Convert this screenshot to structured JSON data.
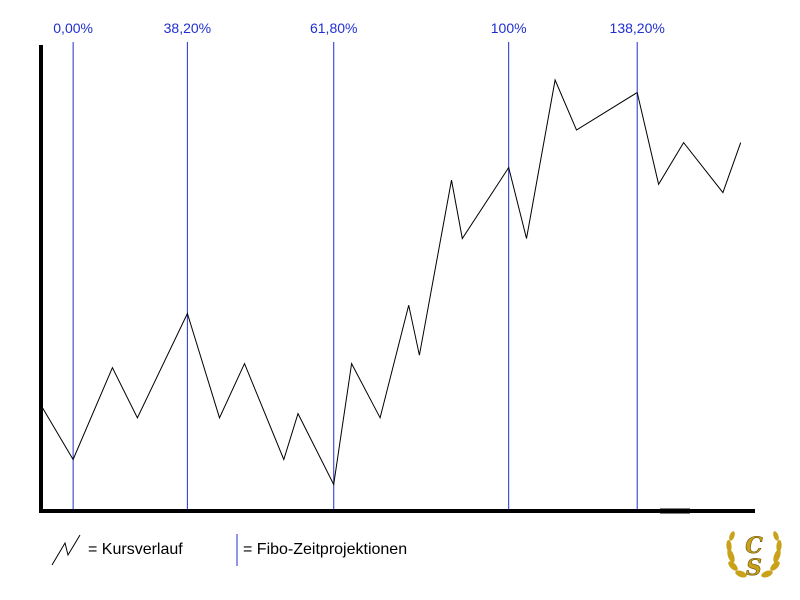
{
  "chart_data": {
    "type": "line",
    "title": "",
    "xlabel": "",
    "ylabel": "",
    "xlim": [
      0,
      100
    ],
    "ylim": [
      0,
      100
    ],
    "grid": false,
    "series": [
      {
        "name": "Kursverlauf",
        "color": "#000000",
        "x": [
          0,
          4.5,
          10,
          13.5,
          20.5,
          25,
          28.5,
          34,
          36,
          41,
          43.5,
          47.5,
          51.5,
          53,
          57.5,
          59,
          65.5,
          68,
          72,
          75,
          83.5,
          86.5,
          90,
          95.5,
          98
        ],
        "y": [
          22,
          9,
          31,
          19,
          44,
          19,
          32,
          9,
          20,
          3,
          32,
          19,
          46,
          34,
          76,
          62,
          79,
          62,
          100,
          88,
          97,
          75,
          85,
          73,
          85
        ]
      }
    ],
    "vlines": [
      {
        "label": "0,00%",
        "x": 4.5,
        "color": "#1f2fd0"
      },
      {
        "label": "38,20%",
        "x": 20.5,
        "color": "#1f2fd0"
      },
      {
        "label": "61,80%",
        "x": 41,
        "color": "#1f2fd0"
      },
      {
        "label": "100%",
        "x": 65.5,
        "color": "#1f2fd0"
      },
      {
        "label": "138,20%",
        "x": 83.5,
        "color": "#1f2fd0"
      }
    ]
  },
  "legend": {
    "price_label": "= Kursverlauf",
    "fibo_label": "= Fibo-Zeitprojektionen",
    "price_icon": "zigzag-line-icon",
    "fibo_icon": "vertical-line-icon"
  },
  "logo": {
    "text": "CS",
    "icon": "laurel-wreath-icon",
    "color": "#c9a21a"
  },
  "colors": {
    "axis": "#000000",
    "price": "#000000",
    "fibo": "#1f2fd0"
  }
}
